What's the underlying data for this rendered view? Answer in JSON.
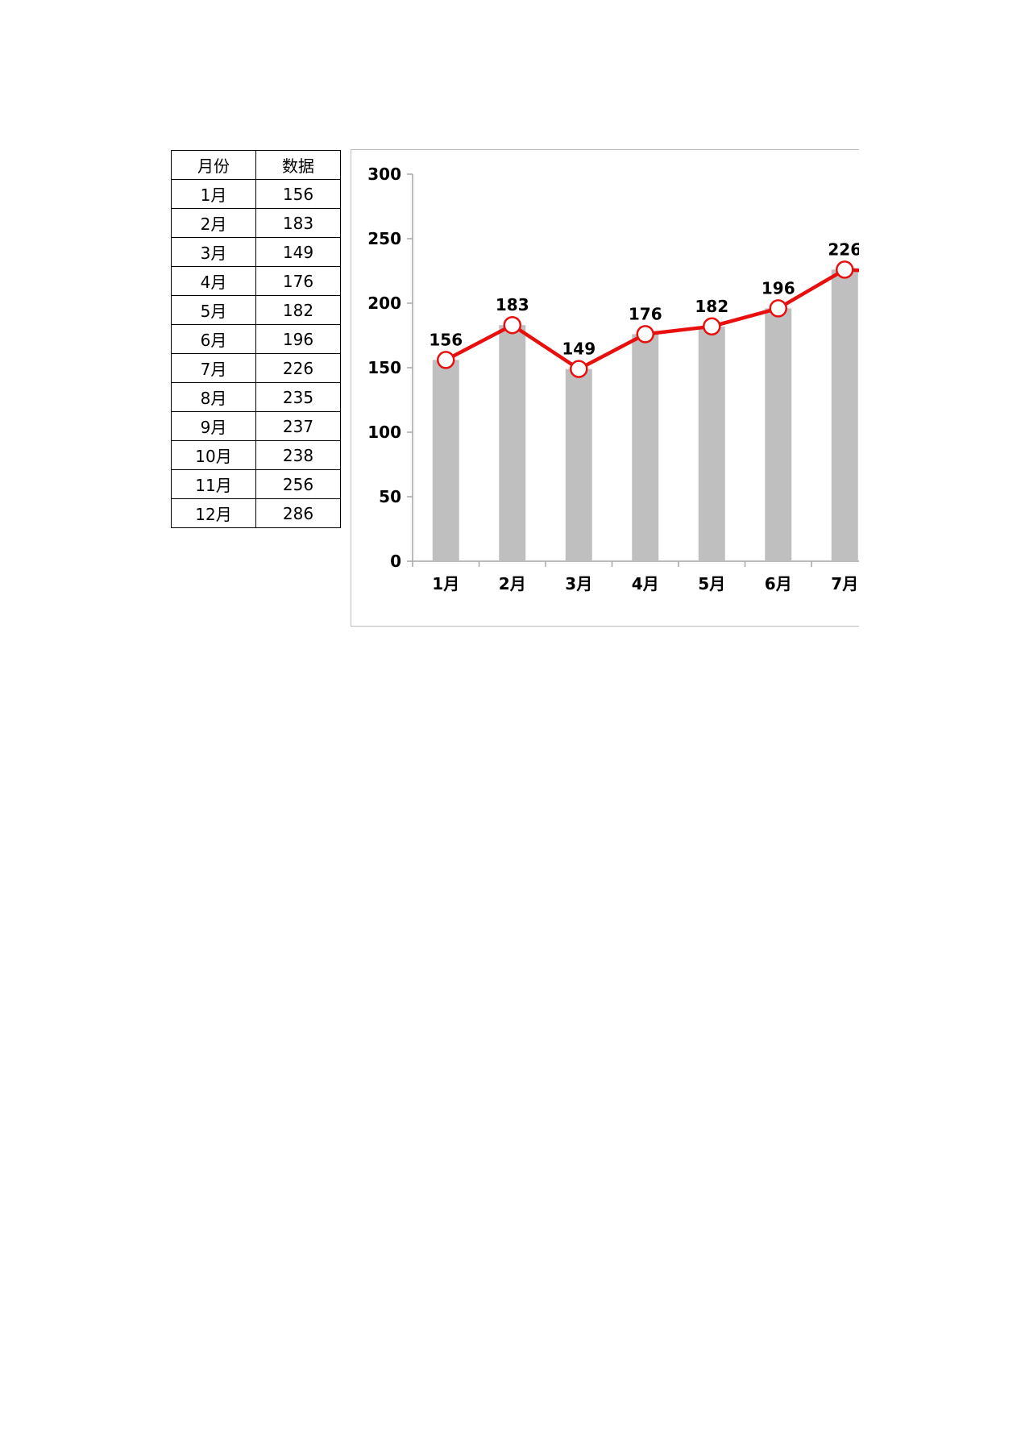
{
  "table": {
    "headers": [
      "月份",
      "数据"
    ],
    "rows": [
      [
        "1月",
        "156"
      ],
      [
        "2月",
        "183"
      ],
      [
        "3月",
        "149"
      ],
      [
        "4月",
        "176"
      ],
      [
        "5月",
        "182"
      ],
      [
        "6月",
        "196"
      ],
      [
        "7月",
        "226"
      ],
      [
        "8月",
        "235"
      ],
      [
        "9月",
        "237"
      ],
      [
        "10月",
        "238"
      ],
      [
        "11月",
        "256"
      ],
      [
        "12月",
        "286"
      ]
    ]
  },
  "chart_data": {
    "type": "bar",
    "categories": [
      "1月",
      "2月",
      "3月",
      "4月",
      "5月",
      "6月",
      "7月"
    ],
    "series": [
      {
        "type": "bar",
        "values": [
          156,
          183,
          149,
          176,
          182,
          196,
          226
        ],
        "color": "#bfbfbf"
      },
      {
        "type": "line",
        "values": [
          156,
          183,
          149,
          176,
          182,
          196,
          226
        ],
        "color": "#e8100f"
      }
    ],
    "yticks": [
      "0",
      "50",
      "100",
      "150",
      "200",
      "250",
      "300"
    ],
    "ylim": [
      0,
      300
    ],
    "grid": false,
    "legend": "none",
    "data_labels": [
      "156",
      "183",
      "149",
      "176",
      "182",
      "196",
      "226"
    ],
    "marker_fill": "#ffffff",
    "marker_stroke": "#e8100f"
  }
}
